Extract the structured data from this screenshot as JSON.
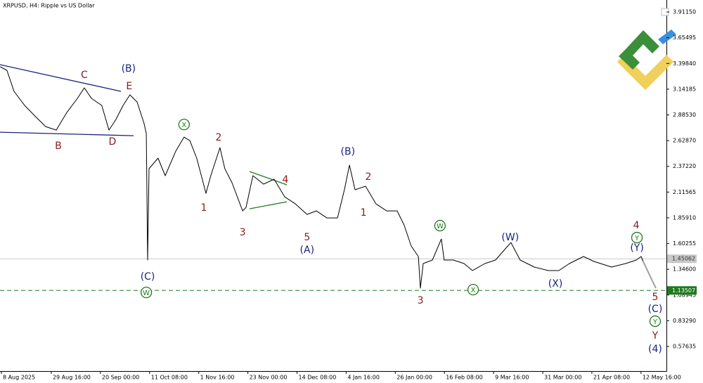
{
  "chart_data": {
    "type": "line",
    "title": "XRPUSD, H4:  Ripple vs US Dollar",
    "color": "#000000",
    "x": [
      -0.5,
      2.4,
      5.5,
      10.1,
      14.6,
      19.2,
      23.8,
      28.4,
      33.0,
      36.0,
      39.1,
      43.6,
      46.7,
      49.7,
      52.8,
      55.8,
      58.9,
      61.9,
      62.9,
      63.5,
      64.1,
      68.0,
      71.1,
      75.7,
      79.3,
      81.8,
      84.8,
      88.8,
      90.9,
      94.9,
      97.0,
      100.1,
      104.7,
      106.2,
      109.2,
      113.8,
      118.4,
      123.0,
      127.6,
      132.7,
      136.7,
      141.3,
      145.9,
      148.9,
      151.1,
      153.5,
      158.1,
      162.6,
      167.2,
      171.8,
      174.8,
      177.9,
      181.0,
      181.9,
      183.1,
      187.1,
      191.0,
      192.2,
      196.2,
      200.8,
      204.5,
      209.9,
      214.5,
      218.5,
      221.2,
      225.2,
      231.3,
      237.4,
      242.0,
      246.6,
      252.7,
      257.2,
      264.9,
      271.0,
      275.6,
      277.7,
      278.6
    ],
    "values": [
      3.365,
      3.33,
      3.12,
      2.979,
      2.874,
      2.769,
      2.734,
      2.909,
      3.05,
      3.155,
      3.05,
      2.979,
      2.734,
      2.839,
      2.979,
      3.085,
      3.014,
      2.804,
      2.699,
      1.438,
      2.349,
      2.454,
      2.279,
      2.524,
      2.664,
      2.629,
      2.454,
      2.103,
      2.279,
      2.559,
      2.349,
      2.209,
      1.928,
      1.963,
      2.279,
      2.195,
      2.244,
      2.068,
      1.998,
      1.893,
      1.928,
      1.858,
      1.858,
      2.139,
      2.384,
      2.139,
      2.174,
      1.998,
      1.928,
      1.928,
      1.788,
      1.578,
      1.473,
      1.157,
      1.403,
      1.438,
      1.648,
      1.438,
      1.438,
      1.403,
      1.333,
      1.403,
      1.438,
      1.543,
      1.613,
      1.438,
      1.368,
      1.333,
      1.333,
      1.403,
      1.473,
      1.424,
      1.368,
      1.403,
      1.438,
      1.473,
      1.424
    ],
    "projection": {
      "color": "#a0a0a0",
      "x": [
        278.6,
        284.1
      ],
      "values": [
        1.424,
        1.157
      ]
    },
    "trendlines": [
      {
        "color": "#1a237e",
        "x": [
          -0.6,
          51.9
        ],
        "values": [
          3.386,
          3.12
        ]
      },
      {
        "color": "#1a237e",
        "x": [
          -0.6,
          57.4
        ],
        "values": [
          2.713,
          2.678
        ]
      },
      {
        "color": "#1e7b1e",
        "x": [
          107.7,
          123.9
        ],
        "values": [
          2.321,
          2.188
        ]
      },
      {
        "color": "#1e7b1e",
        "x": [
          107.7,
          123.9
        ],
        "values": [
          1.949,
          2.019
        ]
      }
    ],
    "levels": [
      {
        "value": 1.45062,
        "label": "1.45062",
        "color": "#c8c8c8",
        "dashed": false
      },
      {
        "value": 1.13507,
        "label": "1.13507",
        "color": "#1e7b1e",
        "dashed": true
      }
    ],
    "annotations": [
      {
        "text": "B",
        "x": 24.7,
        "y": 2.58,
        "color": "#8b1a1a",
        "circled": false
      },
      {
        "text": "C",
        "x": 36.0,
        "y": 3.288,
        "color": "#8b1a1a",
        "circled": false
      },
      {
        "text": "D",
        "x": 48.2,
        "y": 2.622,
        "color": "#8b1a1a",
        "circled": false
      },
      {
        "text": "E",
        "x": 55.5,
        "y": 3.176,
        "color": "#8b1a1a",
        "circled": false
      },
      {
        "text": "(B)",
        "x": 55.2,
        "y": 3.351,
        "color": "#1a237e",
        "circled": false
      },
      {
        "text": "X",
        "x": 79.3,
        "y": 2.79,
        "color": "#1e7b1e",
        "circled": true
      },
      {
        "text": "2",
        "x": 94.3,
        "y": 2.664,
        "color": "#8b1a1a",
        "circled": false
      },
      {
        "text": "1",
        "x": 87.9,
        "y": 1.963,
        "color": "#8b1a1a",
        "circled": false
      },
      {
        "text": "3",
        "x": 104.7,
        "y": 1.718,
        "color": "#8b1a1a",
        "circled": false
      },
      {
        "text": "4",
        "x": 123.3,
        "y": 2.244,
        "color": "#8b1a1a",
        "circled": false
      },
      {
        "text": "5",
        "x": 132.7,
        "y": 1.669,
        "color": "#8b1a1a",
        "circled": false
      },
      {
        "text": "(A)",
        "x": 132.7,
        "y": 1.543,
        "color": "#1a237e",
        "circled": false
      },
      {
        "text": "(B)",
        "x": 150.4,
        "y": 2.524,
        "color": "#1a237e",
        "circled": false
      },
      {
        "text": "2",
        "x": 159.3,
        "y": 2.272,
        "color": "#8b1a1a",
        "circled": false
      },
      {
        "text": "1",
        "x": 157.2,
        "y": 1.914,
        "color": "#8b1a1a",
        "circled": false
      },
      {
        "text": "(C)",
        "x": 63.5,
        "y": 1.277,
        "color": "#1a237e",
        "circled": false
      },
      {
        "text": "W",
        "x": 62.9,
        "y": 1.115,
        "color": "#1e7b1e",
        "circled": true
      },
      {
        "text": "3",
        "x": 181.9,
        "y": 1.038,
        "color": "#8b1a1a",
        "circled": false
      },
      {
        "text": "W",
        "x": 190.4,
        "y": 1.781,
        "color": "#1e7b1e",
        "circled": true
      },
      {
        "text": "X",
        "x": 204.8,
        "y": 1.143,
        "color": "#1e7b1e",
        "circled": true
      },
      {
        "text": "(W)",
        "x": 220.9,
        "y": 1.669,
        "color": "#1a237e",
        "circled": false
      },
      {
        "text": "(X)",
        "x": 240.5,
        "y": 1.206,
        "color": "#1a237e",
        "circled": false
      },
      {
        "text": "4",
        "x": 275.6,
        "y": 1.788,
        "color": "#8b1a1a",
        "circled": false
      },
      {
        "text": "Y",
        "x": 275.9,
        "y": 1.662,
        "color": "#1e7b1e",
        "circled": true
      },
      {
        "text": "(Y)",
        "x": 275.9,
        "y": 1.564,
        "color": "#1a237e",
        "circled": false
      },
      {
        "text": "5",
        "x": 283.8,
        "y": 1.073,
        "color": "#8b1a1a",
        "circled": false
      },
      {
        "text": "(C)",
        "x": 283.8,
        "y": 0.954,
        "color": "#1a237e",
        "circled": false
      },
      {
        "text": "Y",
        "x": 283.8,
        "y": 0.828,
        "color": "#1e7b1e",
        "circled": true
      },
      {
        "text": "Y",
        "x": 283.8,
        "y": 0.688,
        "color": "#8b1a1a",
        "circled": false
      },
      {
        "text": "(4)",
        "x": 283.8,
        "y": 0.555,
        "color": "#1a237e",
        "circled": false
      }
    ],
    "xlim": [
      -0.6,
      288.7
    ],
    "ylim": [
      0.331,
      4.031
    ],
    "xticks": [
      {
        "value": 0,
        "label": "8 Aug 2025"
      },
      {
        "value": 21.667,
        "label": "29 Aug 16:00"
      },
      {
        "value": 43,
        "label": "20 Sep 00:00"
      },
      {
        "value": 64.333,
        "label": "11 Oct 08:00"
      },
      {
        "value": 85.667,
        "label": "1 Nov 16:00"
      },
      {
        "value": 107,
        "label": "23 Nov 00:00"
      },
      {
        "value": 128.333,
        "label": "14 Dec 08:00"
      },
      {
        "value": 149.667,
        "label": "4 Jan 16:00"
      },
      {
        "value": 171,
        "label": "26 Jan 00:00"
      },
      {
        "value": 192.333,
        "label": "16 Feb 08:00"
      },
      {
        "value": 213.667,
        "label": "9 Mar 16:00"
      },
      {
        "value": 235,
        "label": "31 Mar 00:00"
      },
      {
        "value": 256.333,
        "label": "21 Apr 08:00"
      },
      {
        "value": 277.667,
        "label": "12 May 16:00"
      }
    ],
    "yticks": [
      {
        "value": 3.9115,
        "label": "3.91150"
      },
      {
        "value": 3.65495,
        "label": "3.65495"
      },
      {
        "value": 3.3984,
        "label": "3.39840"
      },
      {
        "value": 3.14185,
        "label": "3.14185"
      },
      {
        "value": 2.8853,
        "label": "2.88530"
      },
      {
        "value": 2.6287,
        "label": "2.62870"
      },
      {
        "value": 2.3722,
        "label": "2.37220"
      },
      {
        "value": 2.11565,
        "label": "2.11565"
      },
      {
        "value": 1.8591,
        "label": "1.85910"
      },
      {
        "value": 1.60255,
        "label": "1.60255"
      },
      {
        "value": 1.346,
        "label": "1.34600"
      },
      {
        "value": 1.08945,
        "label": "1.08945"
      },
      {
        "value": 0.8329,
        "label": "0.83290"
      },
      {
        "value": 0.57635,
        "label": "0.57635"
      }
    ]
  }
}
